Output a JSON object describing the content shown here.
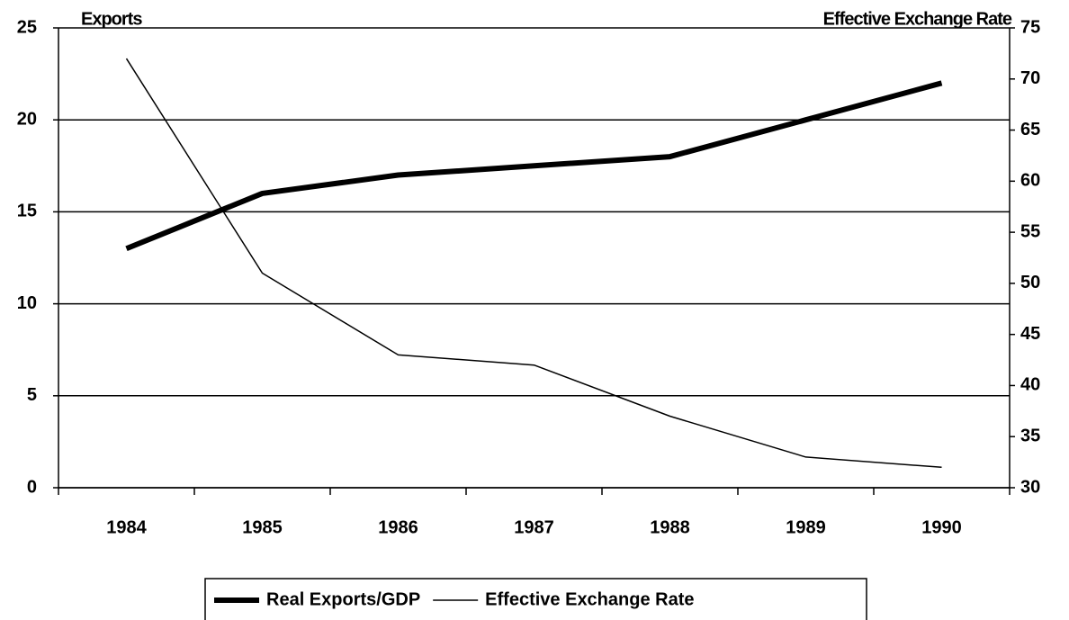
{
  "chart_data": {
    "type": "line",
    "y_label": "Exports",
    "y2_label": "Effective Exchange Rate",
    "categories": [
      "1984",
      "1985",
      "1986",
      "1987",
      "1988",
      "1989",
      "1990"
    ],
    "series": [
      {
        "name": "Real Exports/GDP",
        "color": "#000000",
        "values": [
          13,
          16,
          17,
          17.5,
          18,
          20,
          22
        ]
      },
      {
        "name": "Effective Exchange Rate",
        "color": "#000000",
        "axis": "y2",
        "values": [
          72,
          51,
          43,
          42,
          37,
          33,
          32
        ]
      }
    ],
    "ylim": [
      0,
      25
    ],
    "yticks": [
      0,
      5,
      10,
      15,
      20,
      25
    ],
    "y2lim": [
      30,
      75
    ],
    "y2ticks": [
      30,
      35,
      40,
      45,
      50,
      55,
      60,
      65,
      70,
      75
    ],
    "grid": true,
    "legend": "bottom"
  }
}
